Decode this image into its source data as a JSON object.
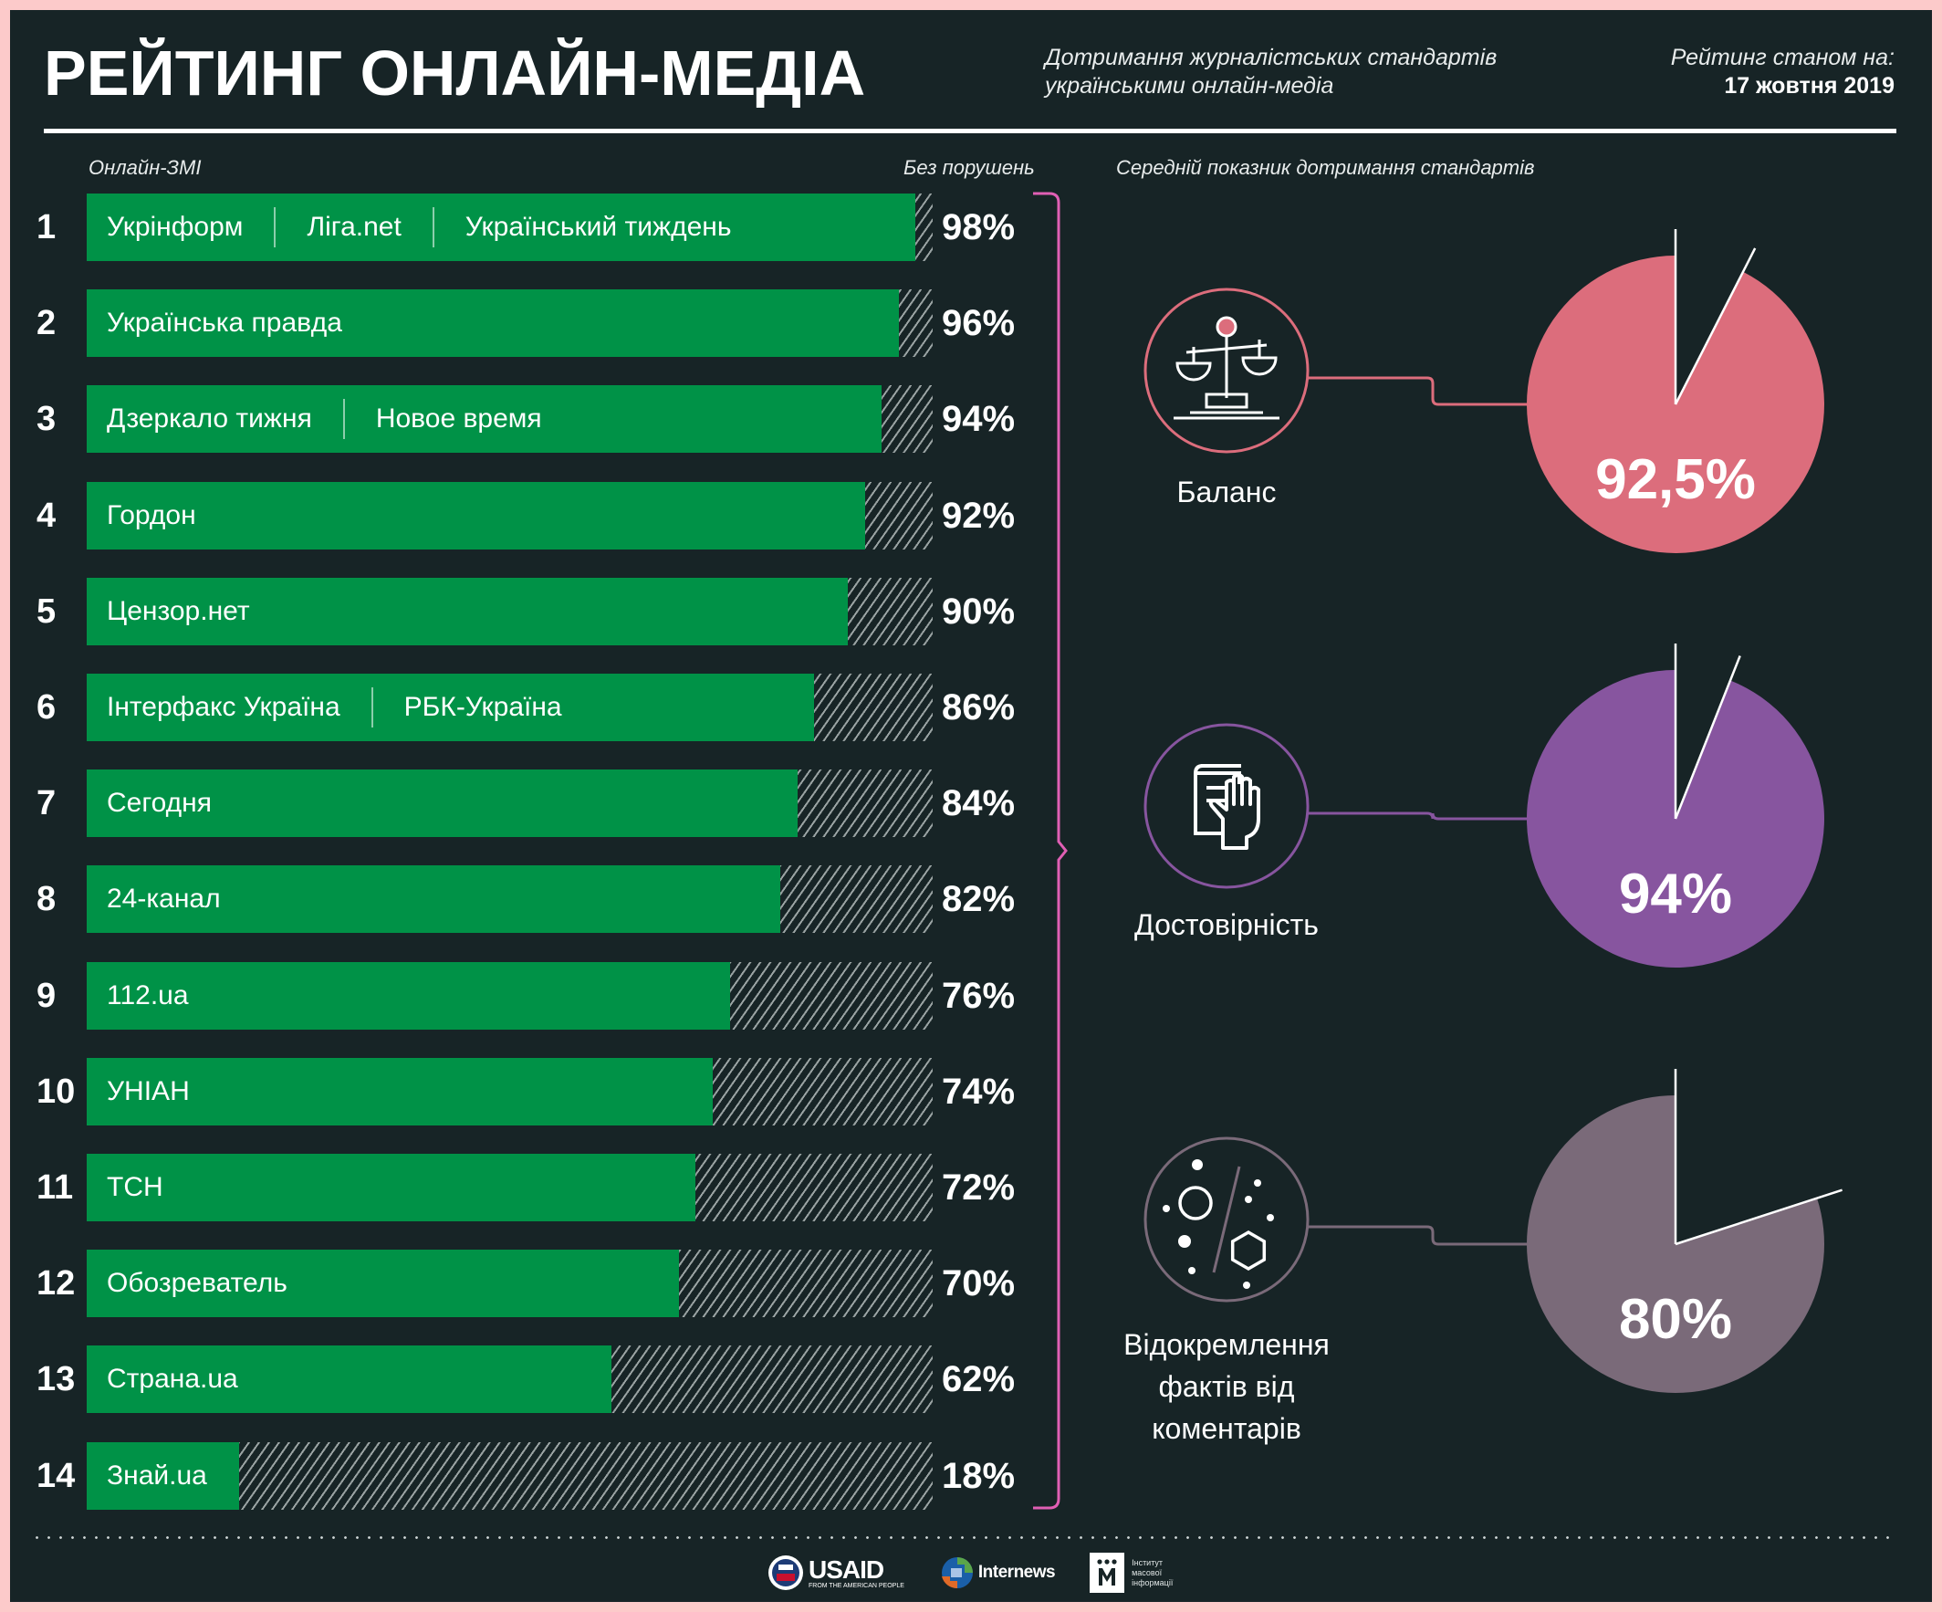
{
  "header": {
    "title": "РЕЙТИНГ ОНЛАЙН-МЕДІА",
    "subtitle_line1": "Дотримання журналістських стандартів",
    "subtitle_line2": "українськими онлайн-медіа",
    "as_of_label": "Рейтинг станом на:",
    "as_of_date": "17 жовтня 2019"
  },
  "column_headers": {
    "media": "Онлайн-ЗМІ",
    "no_violations": "Без порушень",
    "average": "Середній показник дотримання стандартів"
  },
  "colors": {
    "bar_fill": "#009247",
    "bracket": "#e05fb4",
    "balance": "#dc6d7c",
    "reliability": "#87559f",
    "separation": "#7a6a79",
    "background": "#172426",
    "frame": "#fccaca"
  },
  "chart_data": [
    {
      "type": "bar",
      "orientation": "horizontal",
      "title": "Онлайн-ЗМІ",
      "value_label": "Без порушень",
      "unit": "%",
      "xlim": [
        0,
        100
      ],
      "rows": [
        {
          "rank": "1",
          "names": [
            "Укрінформ",
            "Ліга.net",
            "Український тиждень"
          ],
          "value": 98,
          "label": "98%"
        },
        {
          "rank": "2",
          "names": [
            "Українська правда"
          ],
          "value": 96,
          "label": "96%"
        },
        {
          "rank": "3",
          "names": [
            "Дзеркало тижня",
            "Новое время"
          ],
          "value": 94,
          "label": "94%"
        },
        {
          "rank": "4",
          "names": [
            "Гордон"
          ],
          "value": 92,
          "label": "92%"
        },
        {
          "rank": "5",
          "names": [
            "Цензор.нет"
          ],
          "value": 90,
          "label": "90%"
        },
        {
          "rank": "6",
          "names": [
            "Інтерфакс Україна",
            "РБК-Україна"
          ],
          "value": 86,
          "label": "86%"
        },
        {
          "rank": "7",
          "names": [
            "Сегодня"
          ],
          "value": 84,
          "label": "84%"
        },
        {
          "rank": "8",
          "names": [
            "24-канал"
          ],
          "value": 82,
          "label": "82%"
        },
        {
          "rank": "9",
          "names": [
            "112.ua"
          ],
          "value": 76,
          "label": "76%"
        },
        {
          "rank": "10",
          "names": [
            "УНІАН"
          ],
          "value": 74,
          "label": "74%"
        },
        {
          "rank": "11",
          "names": [
            "ТСН"
          ],
          "value": 72,
          "label": "72%"
        },
        {
          "rank": "12",
          "names": [
            "Обозреватель"
          ],
          "value": 70,
          "label": "70%"
        },
        {
          "rank": "13",
          "names": [
            "Страна.ua"
          ],
          "value": 62,
          "label": "62%"
        },
        {
          "rank": "14",
          "names": [
            "Знай.ua"
          ],
          "value": 18,
          "label": "18%"
        }
      ]
    },
    {
      "type": "pie",
      "title": "Середній показник дотримання стандартів",
      "unit": "%",
      "items": [
        {
          "name": "Баланс",
          "lines": [
            "Баланс"
          ],
          "value": 92.5,
          "label": "92,5%",
          "icon": "scales-icon",
          "color": "#dc6d7c"
        },
        {
          "name": "Достовірність",
          "lines": [
            "Достовірність"
          ],
          "value": 94,
          "label": "94%",
          "icon": "hand-on-book-icon",
          "color": "#87559f"
        },
        {
          "name": "Відокремлення фактів від коментарів",
          "lines": [
            "Відокремлення",
            "фактів від",
            "коментарів"
          ],
          "value": 80,
          "label": "80%",
          "icon": "facts-comments-icon",
          "color": "#7a6a79"
        }
      ]
    }
  ],
  "footer": {
    "usaid": "USAID",
    "usaid_tagline": "FROM THE AMERICAN PEOPLE",
    "internews": "Internews",
    "imi_line1": "Інститут",
    "imi_line2": "масової",
    "imi_line3": "інформації"
  }
}
